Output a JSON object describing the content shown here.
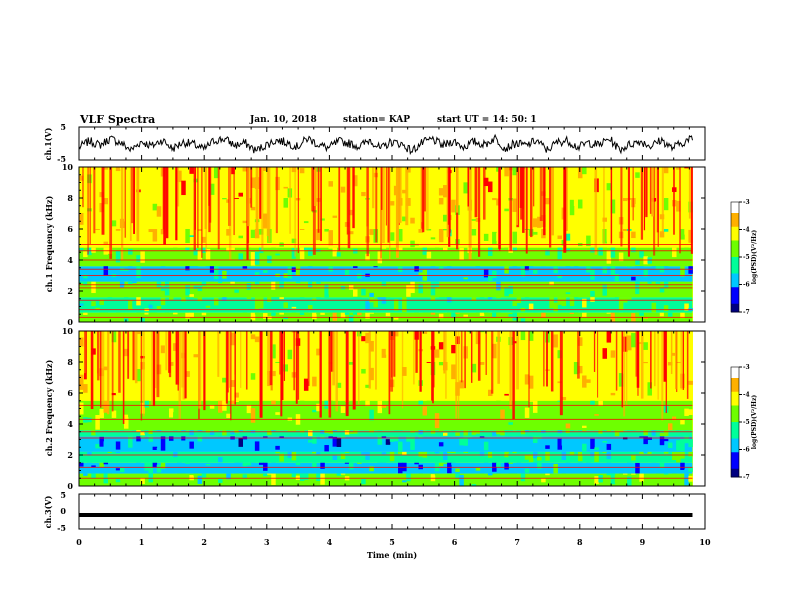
{
  "header": {
    "title": "VLF Spectra",
    "date": "Jan. 10, 2018",
    "station": "station= KAP",
    "start_ut": "start  UT =   14: 50: 1"
  },
  "colors": {
    "colormap": [
      "#000080",
      "#0000ff",
      "#00c8ff",
      "#00ff9a",
      "#6eff00",
      "#ffff00",
      "#ffb000",
      "#ff0000",
      "#ffffff"
    ],
    "waveform": "#000000",
    "ch3_line": "#000000"
  },
  "chart_data": [
    {
      "type": "line",
      "panel": "ch1_waveform",
      "ylabel": "ch.1(V)",
      "ylim": [
        -5,
        5
      ],
      "y_ticks": [
        "5",
        "-5"
      ],
      "x_range_min": [
        0,
        9.8
      ],
      "series": [
        {
          "values": [
            -1.2,
            0.8,
            -0.5,
            1.5,
            0.2,
            -2.0,
            0.6,
            -0.8,
            1.1,
            -1.6,
            0.4,
            -0.2,
            -1.8,
            0.9,
            1.4,
            -0.6,
            0.1,
            -2.2,
            -0.4,
            1.0,
            0.3,
            -1.0,
            1.6,
            -0.3,
            -1.4,
            0.7,
            0.0,
            -0.9,
            1.2,
            -1.7,
            0.5,
            -0.1,
            -2.3,
            0.2,
            1.3,
            -0.7,
            0.8,
            -1.1,
            0.6,
            -0.4,
            1.7,
            -1.5,
            0.1,
            -0.6,
            1.0,
            -2.0,
            0.4,
            0.9,
            -1.2,
            0.3,
            -0.5,
            1.5,
            -1.9,
            -0.2,
            0.7,
            -0.8,
            1.1,
            -1.4,
            0.2,
            1.6
          ]
        }
      ]
    },
    {
      "type": "heatmap",
      "panel": "ch1_spectrogram",
      "ylabel": "ch.1 Frequency (kHz)",
      "xlim": [
        0,
        9.8
      ],
      "ylim": [
        0,
        10
      ],
      "y_ticks": [
        "0",
        "2",
        "4",
        "6",
        "8",
        "10"
      ],
      "colorbar": {
        "label": "log(PSD)(V²/Hz)",
        "range": [
          -7,
          -3
        ],
        "ticks": [
          "-3",
          "-4",
          "-5",
          "-6",
          "-7"
        ]
      },
      "bands_khz": [
        {
          "from": 0.0,
          "to": 0.6,
          "level": -4.6
        },
        {
          "from": 0.6,
          "to": 1.6,
          "level": -5.1
        },
        {
          "from": 1.6,
          "to": 2.6,
          "level": -5.0
        },
        {
          "from": 2.6,
          "to": 3.6,
          "level": -5.7
        },
        {
          "from": 3.6,
          "to": 4.8,
          "level": -4.8
        },
        {
          "from": 4.8,
          "to": 6.0,
          "level": -4.4
        },
        {
          "from": 6.0,
          "to": 8.0,
          "level": -4.1
        },
        {
          "from": 8.0,
          "to": 10.0,
          "level": -3.9
        }
      ],
      "lines_khz": [
        0.3,
        0.8,
        1.4,
        2.2,
        2.4,
        3.0,
        3.4,
        4.0,
        4.6,
        5.0
      ]
    },
    {
      "type": "heatmap",
      "panel": "ch2_spectrogram",
      "ylabel": "ch.2 Frequency (kHz)",
      "xlim": [
        0,
        9.8
      ],
      "ylim": [
        0,
        10
      ],
      "y_ticks": [
        "0",
        "2",
        "4",
        "6",
        "8",
        "10"
      ],
      "colorbar": {
        "label": "log(PSD)(V²/Hz)",
        "range": [
          -7,
          -3
        ],
        "ticks": [
          "-3",
          "-4",
          "-5",
          "-6",
          "-7"
        ]
      },
      "bands_khz": [
        {
          "from": 0.0,
          "to": 0.8,
          "level": -5.0
        },
        {
          "from": 0.8,
          "to": 1.5,
          "level": -5.7
        },
        {
          "from": 1.5,
          "to": 2.2,
          "level": -5.3
        },
        {
          "from": 2.2,
          "to": 3.2,
          "level": -6.1
        },
        {
          "from": 3.2,
          "to": 3.6,
          "level": -5.2
        },
        {
          "from": 3.6,
          "to": 5.5,
          "level": -4.5
        },
        {
          "from": 5.5,
          "to": 8.0,
          "level": -4.1
        },
        {
          "from": 8.0,
          "to": 10.0,
          "level": -3.9
        }
      ],
      "lines_khz": [
        0.5,
        1.2,
        2.0,
        3.1,
        3.5,
        4.3,
        5.2
      ]
    },
    {
      "type": "line",
      "panel": "ch3_waveform",
      "ylabel": "ch.3(V)",
      "ylim": [
        -5,
        5
      ],
      "y_ticks": [
        "5",
        "0",
        "-5"
      ],
      "x_range_min": [
        0,
        9.8
      ],
      "series": [
        {
          "values": [
            -1,
            -1
          ]
        }
      ]
    }
  ],
  "x_axis": {
    "label": "Time (min)",
    "xlim": [
      0,
      10
    ],
    "ticks": [
      "0",
      "1",
      "2",
      "3",
      "4",
      "5",
      "6",
      "7",
      "8",
      "9",
      "10"
    ]
  }
}
